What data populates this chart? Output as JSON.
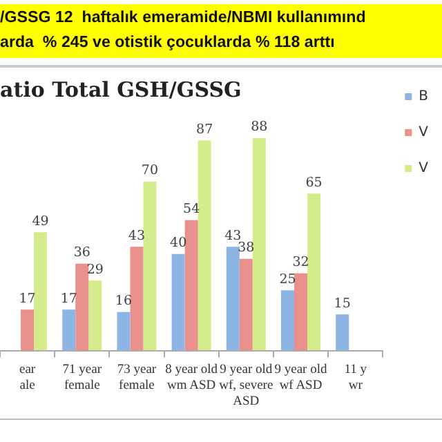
{
  "chart_data": {
    "type": "bar",
    "title": "/GSSG 12  haftalık emeramide/NBMI kullanımınd\narda  % 245 ve otistik çocuklarda % 118 arttı",
    "subtitle": "atio Total GSH/GSSG",
    "categories": [
      "ear\nale",
      "71 year\nfemale",
      "73 year\nfemale",
      "8 year old\nwm ASD",
      "9 year old\nwf, severe\nASD",
      "9 year old\nwf ASD",
      "11 y\nwr"
    ],
    "series": [
      {
        "name": "B",
        "color": "#8eb4e3",
        "values": [
          null,
          17,
          16,
          40,
          43,
          25,
          15
        ],
        "value_labels": [
          null,
          "17",
          "16",
          "40",
          "43",
          "25",
          "15"
        ]
      },
      {
        "name": "V",
        "color": "#e9908d",
        "values": [
          17,
          36,
          43,
          54,
          38,
          32,
          null
        ],
        "value_labels": [
          "17",
          "36",
          "43",
          "54",
          "38",
          "32",
          null
        ]
      },
      {
        "name": "V",
        "color": "#d4ec8c",
        "values": [
          49,
          29,
          70,
          87,
          88,
          65,
          null
        ],
        "value_labels": [
          "49",
          "29",
          "70",
          "87",
          "88",
          "65",
          null
        ]
      }
    ],
    "tick_labels": "x",
    "legend": "right"
  }
}
